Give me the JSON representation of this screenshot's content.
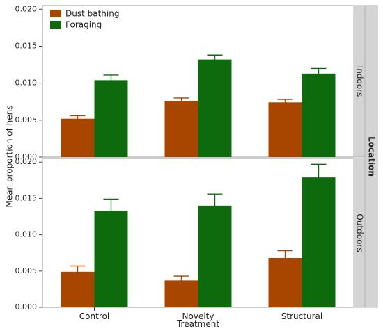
{
  "colors": {
    "dust_bathing": "#a84600",
    "foraging": "#0d6b0d",
    "strip_bg": "#d4d4d4",
    "axis": "#444444"
  },
  "chart_data": {
    "type": "bar",
    "xlabel": "Treatment",
    "ylabel": "Mean proportion of hens",
    "facet_label": "Location",
    "categories": [
      "Control",
      "Novelty",
      "Structural"
    ],
    "legend": {
      "placement": "top-left",
      "entries": [
        "Dust bathing",
        "Foraging"
      ]
    },
    "grid": false,
    "panels": [
      {
        "label": "Indoors",
        "ylim": [
          0,
          0.0205
        ],
        "yticks": [
          "0.000",
          "0.005",
          "0.010",
          "0.015",
          "0.020"
        ],
        "series": [
          {
            "name": "Dust bathing",
            "values": [
              0.0052,
              0.0076,
              0.0074
            ],
            "err_low": [
              0.0048,
              0.0072,
              0.007
            ],
            "err_high": [
              0.0056,
              0.008,
              0.0078
            ]
          },
          {
            "name": "Foraging",
            "values": [
              0.0104,
              0.0132,
              0.0113
            ],
            "err_low": [
              0.0098,
              0.0125,
              0.0107
            ],
            "err_high": [
              0.0111,
              0.0138,
              0.012
            ]
          }
        ]
      },
      {
        "label": "Outdoors",
        "ylim": [
          0,
          0.0205
        ],
        "yticks": [
          "0.000",
          "0.005",
          "0.010",
          "0.015",
          "0.020"
        ],
        "series": [
          {
            "name": "Dust bathing",
            "values": [
              0.0049,
              0.0037,
              0.0068
            ],
            "err_low": [
              0.0041,
              0.0031,
              0.0058
            ],
            "err_high": [
              0.0057,
              0.0043,
              0.0078
            ]
          },
          {
            "name": "Foraging",
            "values": [
              0.0133,
              0.014,
              0.0179
            ],
            "err_low": [
              0.0117,
              0.0124,
              0.0161
            ],
            "err_high": [
              0.0149,
              0.0156,
              0.0197
            ]
          }
        ]
      }
    ]
  }
}
